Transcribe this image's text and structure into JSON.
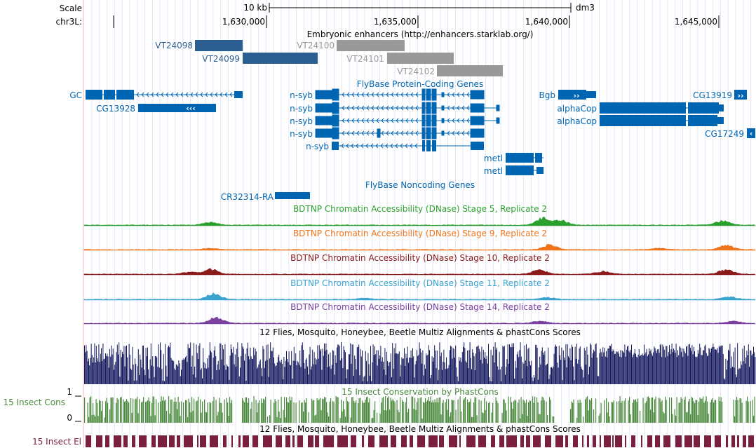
{
  "ruler": {
    "scale_label": "Scale",
    "scale_bar_label": "10 kb",
    "assembly": "dm3",
    "chrom_label": "chr3L:",
    "ticks": [
      "1,630,000",
      "1,635,000",
      "1,640,000",
      "1,645,000"
    ]
  },
  "enhancers": {
    "title": "Embryonic enhancers (http://enhancers.starklab.org/)",
    "items": [
      {
        "name": "VT24098",
        "color": "#2c5f91"
      },
      {
        "name": "VT24099",
        "color": "#2c5f91"
      },
      {
        "name": "VT24100",
        "color": "#999999"
      },
      {
        "name": "VT24101",
        "color": "#999999"
      },
      {
        "name": "VT24102",
        "color": "#999999"
      }
    ]
  },
  "genes": {
    "title": "FlyBase Protein-Coding Genes",
    "color": "#0066b3",
    "labels": [
      "GC",
      "CG13928",
      "n-syb",
      "n-syb",
      "n-syb",
      "n-syb",
      "n-syb",
      "metl",
      "metl",
      "Bgb",
      "alphaCop",
      "alphaCop",
      "CG13919",
      "CG17249"
    ]
  },
  "noncoding": {
    "title": "FlyBase Noncoding Genes",
    "labels": [
      "CR32314-RA"
    ]
  },
  "dnase": [
    {
      "title": "BDTNP Chromatin Accessibility (DNase) Stage 5, Replicate 2",
      "color": "#2ca02c"
    },
    {
      "title": "BDTNP Chromatin Accessibility (DNase) Stage 9, Replicate 2",
      "color": "#f0741b"
    },
    {
      "title": "BDTNP Chromatin Accessibility (DNase) Stage 10, Replicate 2",
      "color": "#8b1a1a"
    },
    {
      "title": "BDTNP Chromatin Accessibility (DNase) Stage 11, Replicate 2",
      "color": "#3ba3d0"
    },
    {
      "title": "BDTNP Chromatin Accessibility (DNase) Stage 14, Replicate 2",
      "color": "#7b3fa0"
    }
  ],
  "multiz": {
    "title": "12 Flies, Mosquito, Honeybee, Beetle Multiz Alignments & phastCons Scores",
    "color": "#14185e"
  },
  "phastcons": {
    "title": "15 Insect Conservation by PhastCons",
    "side_label": "15 Insect Cons",
    "max_label": "1",
    "min_label": "0",
    "color": "#4a8a3c"
  },
  "elements": {
    "title": "12 Flies, Mosquito, Honeybee, Beetle Multiz Alignments & phastCons Scores",
    "side_label": "15 Insect El",
    "color": "#7a1f3d"
  }
}
